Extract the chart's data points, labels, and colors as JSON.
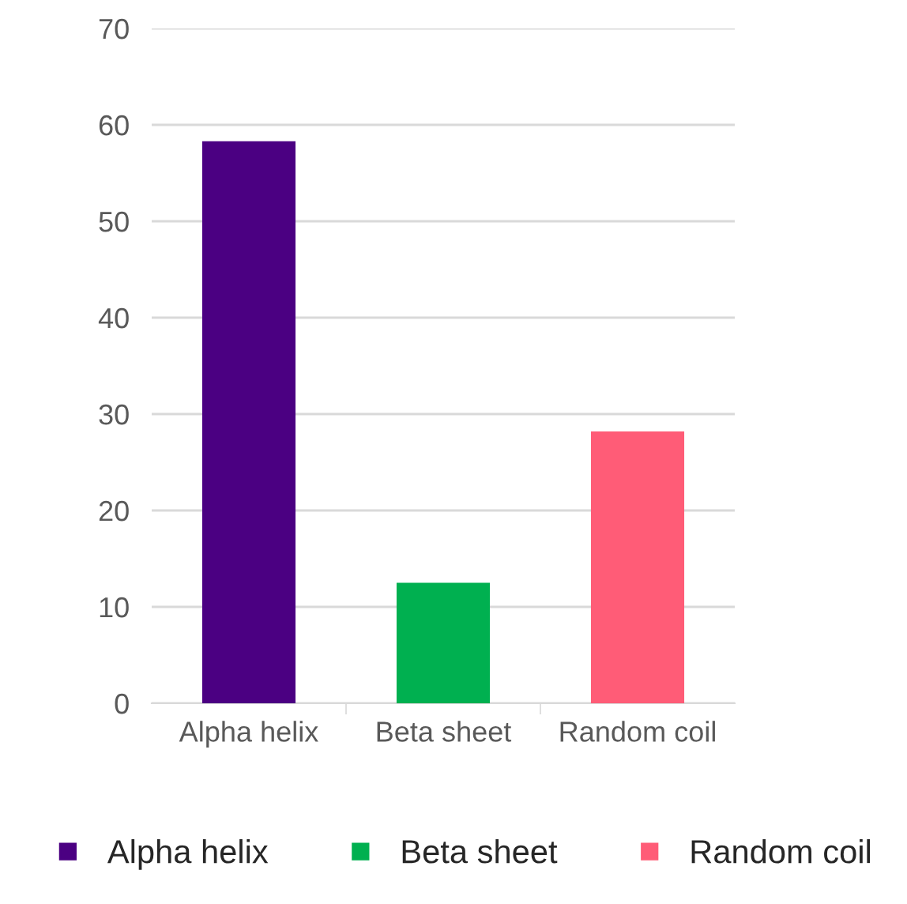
{
  "chart_data": {
    "type": "bar",
    "stacked": true,
    "categories": [
      "Alpha helix",
      "Beta sheet",
      "Random coil"
    ],
    "series": [
      {
        "name": "Alpha helix",
        "color": "#4b0082",
        "values": [
          58.3,
          null,
          null
        ]
      },
      {
        "name": "Beta sheet",
        "color": "#00b050",
        "values": [
          null,
          12.5,
          null
        ]
      },
      {
        "name": "Random coil",
        "color": "#ff5c77",
        "values": [
          null,
          null,
          28.2
        ]
      }
    ],
    "ylim": [
      0,
      70
    ],
    "yticks": [
      0,
      10,
      20,
      30,
      40,
      50,
      60,
      70
    ],
    "grid": "y",
    "legend": "bottom"
  }
}
